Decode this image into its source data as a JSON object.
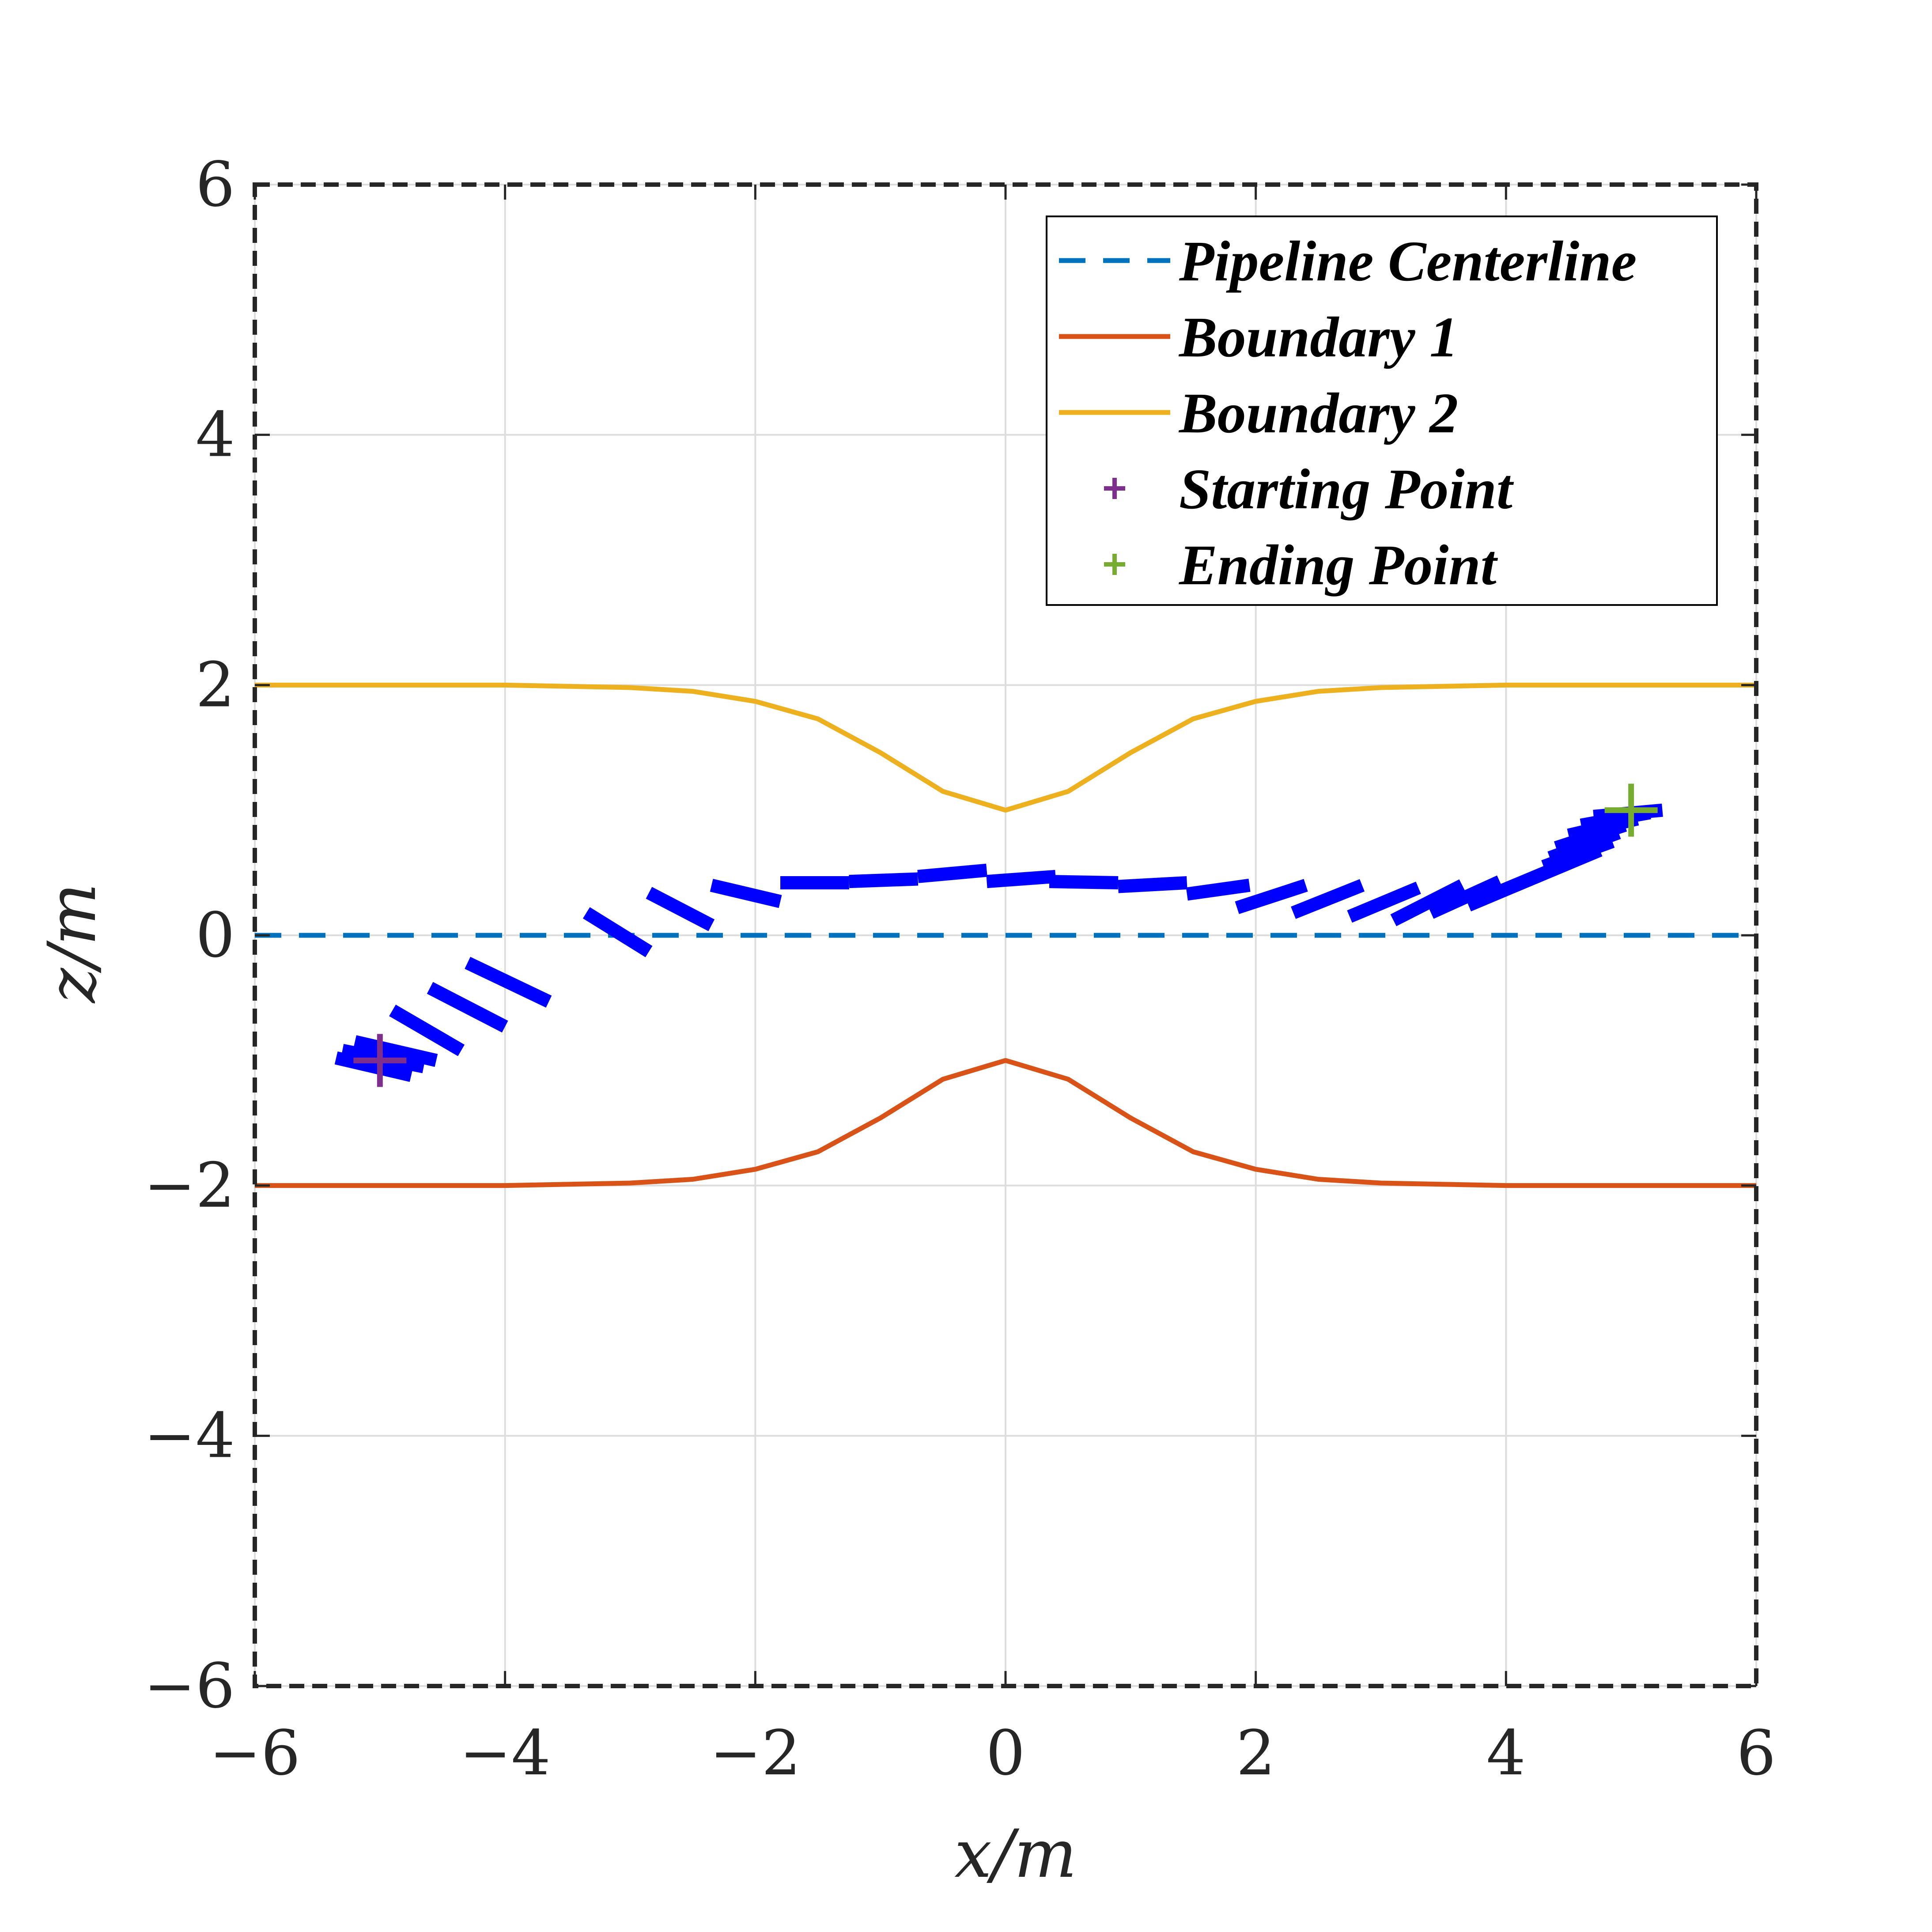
{
  "chart_data": {
    "type": "line",
    "title": "",
    "xlabel": "x/m",
    "ylabel": "z/m",
    "xlim": [
      -6,
      6
    ],
    "ylim": [
      -6,
      6
    ],
    "xticks": [
      -6,
      -4,
      -2,
      0,
      2,
      4,
      6
    ],
    "yticks": [
      -6,
      -4,
      -2,
      0,
      2,
      4,
      6
    ],
    "xtick_labels": [
      "−6",
      "−4",
      "−2",
      "0",
      "2",
      "4",
      "6"
    ],
    "ytick_labels": [
      "−6",
      "−4",
      "−2",
      "0",
      "2",
      "4",
      "6"
    ],
    "grid": true,
    "legend_position": "top-right",
    "colors": {
      "pipeline_centerline": "#0072BD",
      "boundary_1": "#D95319",
      "boundary_2": "#EDB120",
      "starting_point": "#7E2F8E",
      "ending_point": "#77AC30",
      "trajectory": "#0000FF",
      "axes_frame": "#262626",
      "grid": "#DDDDDD"
    },
    "series": [
      {
        "name": "Pipeline Centerline",
        "style": "dashed",
        "x": [
          -6,
          6
        ],
        "y": [
          0,
          0
        ]
      },
      {
        "name": "Boundary 1",
        "style": "solid",
        "x": [
          -6,
          -5,
          -4,
          -3,
          -2.5,
          -2,
          -1.5,
          -1,
          -0.5,
          0,
          0.5,
          1,
          1.5,
          2,
          2.5,
          3,
          4,
          5,
          6
        ],
        "y": [
          -2,
          -2,
          -2,
          -1.98,
          -1.95,
          -1.87,
          -1.73,
          -1.46,
          -1.15,
          -1.0,
          -1.15,
          -1.46,
          -1.73,
          -1.87,
          -1.95,
          -1.98,
          -2,
          -2,
          -2
        ]
      },
      {
        "name": "Boundary 2",
        "style": "solid",
        "x": [
          -6,
          -5,
          -4,
          -3,
          -2.5,
          -2,
          -1.5,
          -1,
          -0.5,
          0,
          0.5,
          1,
          1.5,
          2,
          2.5,
          3,
          4,
          5,
          6
        ],
        "y": [
          2,
          2,
          2,
          1.98,
          1.95,
          1.87,
          1.73,
          1.46,
          1.15,
          1.0,
          1.15,
          1.46,
          1.73,
          1.87,
          1.95,
          1.98,
          2,
          2,
          2
        ]
      },
      {
        "name": "Starting Point",
        "marker": "+",
        "x": [
          -5
        ],
        "y": [
          -1
        ]
      },
      {
        "name": "Ending Point",
        "marker": "+",
        "x": [
          5
        ],
        "y": [
          1
        ]
      }
    ],
    "trajectory_segments": [
      [
        -5.35,
        -0.98,
        -4.75,
        -1.12
      ],
      [
        -5.3,
        -0.92,
        -4.65,
        -1.05
      ],
      [
        -5.2,
        -0.85,
        -4.55,
        -1.0
      ],
      [
        -4.9,
        -0.6,
        -4.35,
        -0.92
      ],
      [
        -4.6,
        -0.42,
        -4.0,
        -0.73
      ],
      [
        -4.3,
        -0.22,
        -3.65,
        -0.53
      ],
      [
        -3.35,
        0.18,
        -2.85,
        -0.13
      ],
      [
        -2.85,
        0.34,
        -2.35,
        0.08
      ],
      [
        -2.35,
        0.4,
        -1.8,
        0.27
      ],
      [
        -1.8,
        0.42,
        -1.25,
        0.42
      ],
      [
        -1.25,
        0.43,
        -0.7,
        0.45
      ],
      [
        -0.7,
        0.47,
        -0.15,
        0.52
      ],
      [
        -0.15,
        0.43,
        0.4,
        0.47
      ],
      [
        0.35,
        0.43,
        0.9,
        0.42
      ],
      [
        0.9,
        0.39,
        1.45,
        0.42
      ],
      [
        1.45,
        0.33,
        1.95,
        0.4
      ],
      [
        1.85,
        0.22,
        2.4,
        0.4
      ],
      [
        2.3,
        0.18,
        2.85,
        0.4
      ],
      [
        2.75,
        0.15,
        3.3,
        0.38
      ],
      [
        3.1,
        0.12,
        3.65,
        0.4
      ],
      [
        3.4,
        0.18,
        3.95,
        0.43
      ],
      [
        3.7,
        0.24,
        4.2,
        0.45
      ],
      [
        3.95,
        0.35,
        4.5,
        0.58
      ],
      [
        4.2,
        0.45,
        4.75,
        0.68
      ],
      [
        4.3,
        0.55,
        4.85,
        0.75
      ],
      [
        4.35,
        0.62,
        4.9,
        0.82
      ],
      [
        4.4,
        0.7,
        4.95,
        0.88
      ],
      [
        4.5,
        0.8,
        5.05,
        0.93
      ],
      [
        4.6,
        0.88,
        5.15,
        0.98
      ],
      [
        4.7,
        0.95,
        5.25,
        1.0
      ]
    ]
  }
}
